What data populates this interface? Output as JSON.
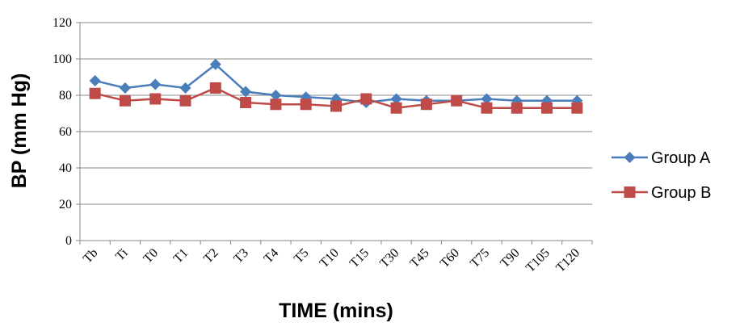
{
  "chart_data": {
    "type": "line",
    "xlabel": "TIME (mins)",
    "ylabel": "BP (mm Hg)",
    "ylim": [
      0,
      120
    ],
    "yticks": [
      0,
      20,
      40,
      60,
      80,
      100,
      120
    ],
    "grid": "horizontal",
    "legend": "right",
    "categories": [
      "Tb",
      "Ti",
      "T0",
      "T1",
      "T2",
      "T3",
      "T4",
      "T5",
      "T10",
      "T15",
      "T30",
      "T45",
      "T60",
      "T75",
      "T90",
      "T105",
      "T120"
    ],
    "series": [
      {
        "name": "Group A",
        "color": "#4a7ebb",
        "marker": "diamond",
        "values": [
          88,
          84,
          86,
          84,
          97,
          82,
          80,
          79,
          78,
          76,
          78,
          77,
          77,
          78,
          77,
          77,
          77
        ]
      },
      {
        "name": "Group B",
        "color": "#be4b48",
        "marker": "square",
        "values": [
          81,
          77,
          78,
          77,
          84,
          76,
          75,
          75,
          74,
          78,
          73,
          75,
          77,
          73,
          73,
          73,
          73
        ]
      }
    ]
  }
}
